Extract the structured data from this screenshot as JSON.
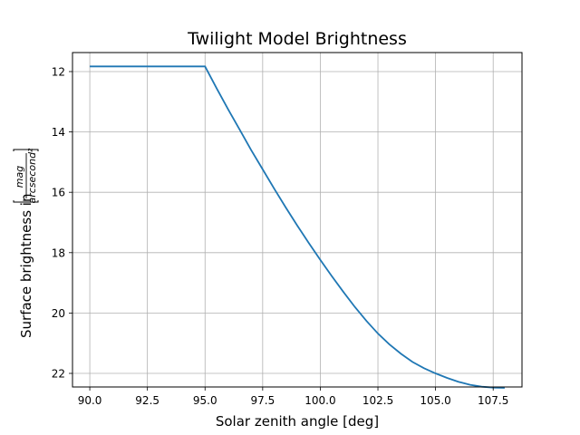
{
  "chart_data": {
    "type": "line",
    "title": "Twilight Model Brightness",
    "xlabel": "Solar zenith angle [deg]",
    "ylabel": "Surface brightness in",
    "ylabel_unit_numerator": "mag",
    "ylabel_unit_denominator": "arcsecond²",
    "xlim": [
      89.25,
      108.75
    ],
    "ylim": [
      22.45,
      11.37
    ],
    "y_inverted": true,
    "xticks": [
      90.0,
      92.5,
      95.0,
      97.5,
      100.0,
      102.5,
      105.0,
      107.5
    ],
    "xtick_labels": [
      "90.0",
      "92.5",
      "95.0",
      "97.5",
      "100.0",
      "102.5",
      "105.0",
      "107.5"
    ],
    "yticks": [
      12,
      14,
      16,
      18,
      20,
      22
    ],
    "ytick_labels": [
      "12",
      "14",
      "16",
      "18",
      "20",
      "22"
    ],
    "grid": true,
    "line_color": "#1f77b4",
    "series": [
      {
        "x": [
          90.0,
          91.0,
          92.0,
          93.0,
          94.0,
          95.0,
          95.5,
          96.0,
          96.5,
          97.0,
          97.5,
          98.0,
          98.5,
          99.0,
          99.5,
          100.0,
          100.5,
          101.0,
          101.5,
          102.0,
          102.5,
          103.0,
          103.5,
          104.0,
          104.5,
          105.0,
          105.5,
          106.0,
          106.5,
          107.0,
          107.5,
          108.0
        ],
        "y": [
          11.83,
          11.83,
          11.83,
          11.83,
          11.83,
          11.83,
          12.55,
          13.25,
          13.92,
          14.6,
          15.24,
          15.88,
          16.5,
          17.1,
          17.68,
          18.24,
          18.78,
          19.3,
          19.8,
          20.26,
          20.68,
          21.04,
          21.35,
          21.62,
          21.83,
          22.0,
          22.15,
          22.28,
          22.38,
          22.44,
          22.47,
          22.48
        ]
      }
    ]
  }
}
